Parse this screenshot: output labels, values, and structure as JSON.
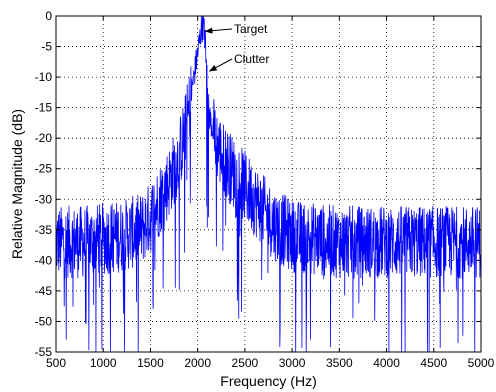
{
  "chart_data": {
    "type": "line",
    "title": "",
    "xlabel": "Frequency (Hz)",
    "ylabel": "Relative Magnitude (dB)",
    "xlim": [
      500,
      5000
    ],
    "ylim": [
      -55,
      0
    ],
    "xticks": [
      500,
      1000,
      1500,
      2000,
      2500,
      3000,
      3500,
      4000,
      4500,
      5000
    ],
    "yticks": [
      0,
      -5,
      -10,
      -15,
      -20,
      -25,
      -30,
      -35,
      -40,
      -45,
      -50,
      -55
    ],
    "grid": true,
    "line_color": "#0000ff",
    "annotations": [
      {
        "text": "Target",
        "x": 2040,
        "y": -2.5
      },
      {
        "text": "Clutter",
        "x": 2085,
        "y": -9
      }
    ],
    "series": [
      {
        "color": "#0000ff",
        "envelope": {
          "x": [
            500,
            800,
            1000,
            1200,
            1400,
            1500,
            1600,
            1700,
            1800,
            1850,
            1900,
            1950,
            2000,
            2020,
            2040,
            2060,
            2080,
            2100,
            2120,
            2150,
            2200,
            2300,
            2400,
            2500,
            2600,
            2700,
            2800,
            3000,
            3500,
            4000,
            4500,
            5000
          ],
          "y": [
            -37,
            -37,
            -36.5,
            -36,
            -35,
            -33,
            -30,
            -27,
            -23,
            -20,
            -16,
            -11,
            -6,
            -4,
            -2,
            -1.5,
            -4,
            -10,
            -16,
            -18,
            -21,
            -24,
            -26,
            -28,
            -30,
            -32,
            -34,
            -36,
            -37,
            -37,
            -37,
            -37
          ]
        },
        "noise_spread_db": 6,
        "min_dips_db": -55
      }
    ]
  }
}
